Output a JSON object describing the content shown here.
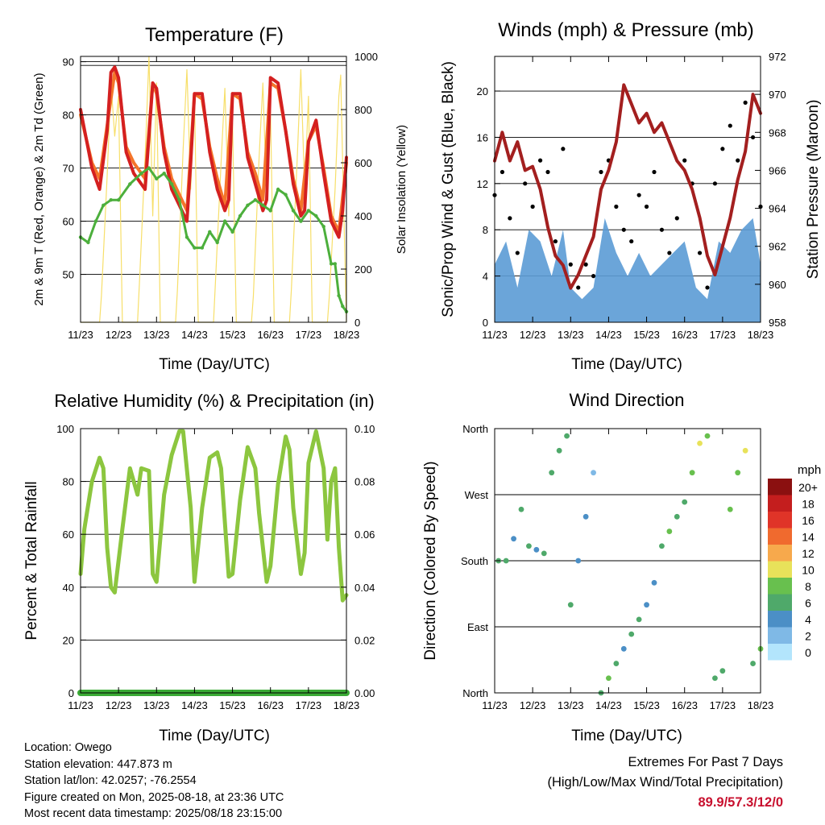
{
  "charts": [
    {
      "title": "Temperature (F)",
      "xlabel": "Time (Day/UTC)",
      "ylabel_left": "2m & 9m T (Red, Orange) & 2m Td (Green)",
      "ylabel_right": "Solar Insolation (Yellow)",
      "x_ticks": [
        "11/23",
        "12/23",
        "13/23",
        "14/23",
        "15/23",
        "16/23",
        "17/23",
        "18/23"
      ],
      "left_ticks": [
        "50",
        "60",
        "70",
        "80",
        "90"
      ],
      "right_ticks": [
        "0",
        "200",
        "400",
        "600",
        "800",
        "1000"
      ]
    },
    {
      "title": "Winds (mph) & Pressure (mb)",
      "xlabel": "Time (Day/UTC)",
      "ylabel_left": "Sonic/Prop Wind & Gust (Blue, Black)",
      "ylabel_right": "Station Pressure (Maroon)",
      "x_ticks": [
        "11/23",
        "12/23",
        "13/23",
        "14/23",
        "15/23",
        "16/23",
        "17/23",
        "18/23"
      ],
      "left_ticks": [
        "0",
        "4",
        "8",
        "12",
        "16",
        "20"
      ],
      "right_ticks": [
        "958",
        "960",
        "962",
        "964",
        "966",
        "968",
        "970",
        "972"
      ]
    },
    {
      "title": "Relative Humidity (%) & Precipitation (in)",
      "xlabel": "Time (Day/UTC)",
      "ylabel_left": "Percent & Total Rainfall",
      "ylabel_right": "",
      "x_ticks": [
        "11/23",
        "12/23",
        "13/23",
        "14/23",
        "15/23",
        "16/23",
        "17/23",
        "18/23"
      ],
      "left_ticks": [
        "0",
        "20",
        "40",
        "60",
        "80",
        "100"
      ],
      "right_ticks": [
        "0.00",
        "0.02",
        "0.04",
        "0.06",
        "0.08",
        "0.10"
      ]
    },
    {
      "title": "Wind Direction",
      "xlabel": "Time (Day/UTC)",
      "ylabel_left": "Direction (Colored By Speed)",
      "ylabel_right": "",
      "x_ticks": [
        "11/23",
        "12/23",
        "13/23",
        "14/23",
        "15/23",
        "16/23",
        "17/23",
        "18/23"
      ],
      "left_ticks": [
        "North",
        "East",
        "South",
        "West",
        "North"
      ],
      "right_ticks": [],
      "legend_title": "mph",
      "legend_labels": [
        "20+",
        "18",
        "16",
        "14",
        "12",
        "10",
        "8",
        "6",
        "4",
        "2",
        "0"
      ]
    }
  ],
  "chart_data": [
    {
      "type": "line",
      "title": "Temperature (F)",
      "x_range_days": [
        11,
        18
      ],
      "ylim": [
        41,
        91
      ],
      "y2lim": [
        0,
        1000
      ],
      "grid": true,
      "series": [
        {
          "name": "2m T",
          "color": "#d42020",
          "x": [
            11.0,
            11.3,
            11.5,
            11.7,
            11.8,
            11.9,
            12.0,
            12.2,
            12.4,
            12.7,
            12.8,
            12.9,
            13.0,
            13.2,
            13.4,
            13.6,
            13.8,
            13.9,
            14.0,
            14.2,
            14.4,
            14.6,
            14.8,
            14.9,
            15.0,
            15.2,
            15.4,
            15.6,
            15.8,
            15.9,
            16.0,
            16.2,
            16.4,
            16.6,
            16.8,
            16.9,
            17.0,
            17.2,
            17.4,
            17.6,
            17.8,
            17.9,
            18.0
          ],
          "y": [
            81,
            70,
            66,
            77,
            88,
            89,
            87,
            73,
            69,
            66,
            76,
            86,
            85,
            73,
            66,
            63,
            60,
            71,
            84,
            84,
            73,
            66,
            62,
            64,
            84,
            84,
            72,
            67,
            62,
            64,
            87,
            86,
            77,
            67,
            61,
            62,
            75,
            79,
            69,
            60,
            57,
            62,
            72
          ]
        },
        {
          "name": "9m T",
          "color": "#f4752a",
          "x": [
            11.0,
            11.3,
            11.5,
            11.7,
            11.9,
            12.0,
            12.2,
            12.4,
            12.7,
            12.9,
            13.0,
            13.2,
            13.4,
            13.6,
            13.8,
            14.0,
            14.2,
            14.4,
            14.6,
            14.8,
            15.0,
            15.2,
            15.4,
            15.6,
            15.8,
            16.0,
            16.2,
            16.4,
            16.6,
            16.8,
            17.0,
            17.2,
            17.4,
            17.6,
            17.8,
            18.0
          ],
          "y": [
            80,
            71,
            68,
            78,
            88,
            86,
            74,
            71,
            68,
            86,
            84,
            74,
            68,
            65,
            62,
            84,
            83,
            74,
            68,
            63,
            84,
            83,
            73,
            69,
            64,
            86,
            85,
            77,
            68,
            62,
            75,
            78,
            70,
            61,
            58,
            71
          ]
        },
        {
          "name": "2m Td",
          "color": "#4caf3c",
          "x": [
            11.0,
            11.2,
            11.4,
            11.6,
            11.8,
            12.0,
            12.3,
            12.6,
            12.8,
            13.0,
            13.2,
            13.4,
            13.6,
            13.8,
            14.0,
            14.2,
            14.4,
            14.6,
            14.8,
            15.0,
            15.2,
            15.4,
            15.6,
            15.8,
            16.0,
            16.2,
            16.4,
            16.6,
            16.8,
            17.0,
            17.2,
            17.4,
            17.6,
            17.7,
            17.8,
            17.9,
            18.0
          ],
          "y": [
            57,
            56,
            60,
            63,
            64,
            64,
            67,
            69,
            70,
            68,
            69,
            67,
            64,
            57,
            55,
            55,
            58,
            56,
            60,
            58,
            61,
            63,
            64,
            63,
            62,
            66,
            65,
            62,
            60,
            62,
            61,
            59,
            52,
            52,
            46,
            44,
            43
          ]
        },
        {
          "name": "Solar Insolation",
          "color": "#f7df6a",
          "axis": "right",
          "x": [
            11.0,
            11.5,
            11.55,
            11.7,
            11.8,
            11.9,
            12.0,
            12.1,
            12.5,
            12.55,
            12.7,
            12.8,
            12.9,
            13.0,
            13.1,
            13.5,
            13.55,
            13.7,
            13.8,
            13.9,
            14.0,
            14.1,
            14.5,
            14.55,
            14.7,
            14.8,
            14.9,
            15.0,
            15.1,
            15.5,
            15.55,
            15.7,
            15.8,
            15.9,
            16.0,
            16.1,
            16.5,
            16.55,
            16.7,
            16.8,
            16.9,
            17.0,
            17.1,
            17.5,
            17.55,
            17.7,
            17.8,
            17.85,
            17.9,
            18.0
          ],
          "y": [
            0,
            0,
            100,
            550,
            900,
            700,
            850,
            0,
            0,
            150,
            620,
            1000,
            400,
            900,
            0,
            0,
            120,
            650,
            950,
            500,
            850,
            0,
            0,
            150,
            600,
            880,
            400,
            750,
            0,
            0,
            100,
            620,
            900,
            450,
            800,
            0,
            0,
            120,
            600,
            950,
            500,
            850,
            0,
            0,
            100,
            500,
            850,
            930,
            600,
            0
          ]
        }
      ]
    },
    {
      "type": "line",
      "title": "Winds (mph) & Pressure (mb)",
      "x_range_days": [
        11,
        18
      ],
      "ylim": [
        0,
        23
      ],
      "y2lim": [
        958,
        972
      ],
      "grid": true,
      "series": [
        {
          "name": "Sonic/Prop Wind",
          "color": "#5b9bd5",
          "x": [
            11.0,
            11.3,
            11.6,
            11.9,
            12.2,
            12.5,
            12.8,
            13.0,
            13.3,
            13.6,
            13.9,
            14.2,
            14.5,
            14.8,
            15.1,
            15.4,
            15.7,
            16.0,
            16.3,
            16.6,
            16.9,
            17.2,
            17.5,
            17.8,
            18.0
          ],
          "y": [
            5,
            7,
            3,
            8,
            7,
            4,
            8,
            3,
            2,
            3,
            9,
            6,
            4,
            6,
            4,
            5,
            6,
            7,
            3,
            2,
            7,
            6,
            8,
            9,
            5
          ]
        },
        {
          "name": "Gust",
          "color": "#000000",
          "x": [
            11.0,
            11.2,
            11.4,
            11.6,
            11.8,
            12.0,
            12.2,
            12.4,
            12.6,
            12.8,
            13.0,
            13.2,
            13.4,
            13.6,
            13.8,
            14.0,
            14.2,
            14.4,
            14.6,
            14.8,
            15.0,
            15.2,
            15.4,
            15.6,
            15.8,
            16.0,
            16.2,
            16.4,
            16.6,
            16.8,
            17.0,
            17.2,
            17.4,
            17.6,
            17.8,
            18.0
          ],
          "y": [
            11,
            13,
            9,
            6,
            12,
            10,
            14,
            13,
            7,
            15,
            5,
            3,
            5,
            4,
            13,
            14,
            10,
            8,
            7,
            11,
            10,
            13,
            8,
            6,
            9,
            14,
            12,
            6,
            3,
            12,
            15,
            17,
            14,
            19,
            16,
            10
          ]
        },
        {
          "name": "Station Pressure",
          "color": "#a31f1f",
          "axis": "right",
          "x": [
            11.0,
            11.2,
            11.4,
            11.6,
            11.8,
            12.0,
            12.2,
            12.4,
            12.6,
            12.8,
            13.0,
            13.2,
            13.4,
            13.6,
            13.8,
            14.0,
            14.2,
            14.4,
            14.6,
            14.8,
            15.0,
            15.2,
            15.4,
            15.6,
            15.8,
            16.0,
            16.2,
            16.4,
            16.6,
            16.8,
            17.0,
            17.2,
            17.4,
            17.6,
            17.8,
            18.0
          ],
          "y": [
            966.5,
            968.0,
            966.5,
            967.5,
            966.0,
            966.2,
            965.0,
            963.0,
            961.5,
            961.0,
            959.8,
            960.5,
            961.5,
            962.5,
            965.0,
            966.0,
            967.5,
            970.5,
            969.5,
            968.5,
            969.0,
            968.0,
            968.5,
            967.5,
            966.5,
            966.0,
            965.0,
            963.5,
            961.5,
            960.5,
            962.0,
            963.5,
            965.5,
            967.0,
            970.0,
            969.0
          ]
        }
      ]
    },
    {
      "type": "line",
      "title": "Relative Humidity (%) & Precipitation (in)",
      "x_range_days": [
        11,
        18
      ],
      "ylim": [
        0,
        100
      ],
      "y2lim": [
        0,
        0.1
      ],
      "grid": true,
      "series": [
        {
          "name": "Relative Humidity",
          "color": "#8cc63f",
          "x": [
            11.0,
            11.1,
            11.3,
            11.5,
            11.6,
            11.7,
            11.8,
            11.9,
            12.1,
            12.3,
            12.5,
            12.6,
            12.8,
            12.9,
            13.0,
            13.2,
            13.4,
            13.6,
            13.7,
            13.9,
            14.0,
            14.2,
            14.4,
            14.6,
            14.7,
            14.9,
            15.0,
            15.2,
            15.4,
            15.6,
            15.7,
            15.9,
            16.0,
            16.2,
            16.4,
            16.5,
            16.6,
            16.8,
            16.9,
            17.0,
            17.2,
            17.4,
            17.5,
            17.6,
            17.7,
            17.8,
            17.9,
            18.0
          ],
          "y": [
            45,
            62,
            80,
            89,
            85,
            55,
            40,
            38,
            62,
            85,
            75,
            85,
            84,
            45,
            42,
            75,
            90,
            99,
            99,
            70,
            42,
            70,
            89,
            91,
            85,
            44,
            45,
            73,
            93,
            85,
            68,
            42,
            48,
            79,
            97,
            92,
            70,
            45,
            53,
            87,
            99,
            85,
            58,
            80,
            85,
            55,
            35,
            37
          ]
        },
        {
          "name": "Total Rainfall",
          "color": "#3aaa35",
          "axis": "right",
          "x": [
            11.0,
            18.0
          ],
          "y": [
            0.0,
            0.0
          ]
        }
      ]
    },
    {
      "type": "scatter",
      "title": "Wind Direction",
      "x_range_days": [
        11,
        18
      ],
      "y_categories": [
        "North",
        "East",
        "South",
        "West",
        "North"
      ],
      "legend_placement": "right",
      "colors": [
        "#b3e5fc",
        "#7fb9e6",
        "#4b8fc6",
        "#4fa96a",
        "#68c04e",
        "#e8e25a",
        "#f7a94c",
        "#f06a2e",
        "#e03428",
        "#c41e1e",
        "#8b1010"
      ],
      "points_deg_speed": [
        {
          "x": [
            11.1,
            11.3,
            11.5,
            11.7,
            11.9,
            12.1,
            12.3,
            12.5,
            12.7,
            12.9
          ],
          "y": [
            180,
            180,
            210,
            250,
            200,
            195,
            190,
            300,
            330,
            350
          ],
          "speed": [
            6,
            6,
            4,
            6,
            5,
            4,
            6,
            5,
            6,
            6
          ]
        },
        {
          "x": [
            13.0,
            13.2,
            13.4,
            13.6,
            13.8,
            14.0,
            14.2,
            14.4,
            14.6,
            14.8,
            15.0
          ],
          "y": [
            120,
            180,
            240,
            300,
            0,
            20,
            40,
            60,
            80,
            100,
            120
          ],
          "speed": [
            6,
            4,
            3,
            2,
            6,
            7,
            6,
            4,
            5,
            6,
            4
          ]
        },
        {
          "x": [
            15.2,
            15.4,
            15.6,
            15.8,
            16.0,
            16.2,
            16.4,
            16.6,
            16.8,
            17.0
          ],
          "y": [
            150,
            200,
            220,
            240,
            260,
            300,
            340,
            350,
            20,
            30
          ],
          "speed": [
            4,
            6,
            7,
            5,
            6,
            8,
            9,
            8,
            6,
            6
          ]
        },
        {
          "x": [
            17.2,
            17.4,
            17.6,
            17.8,
            18.0
          ],
          "y": [
            250,
            300,
            330,
            40,
            60
          ],
          "speed": [
            7,
            8,
            10,
            6,
            7
          ]
        }
      ]
    }
  ],
  "info": {
    "left": [
      "Location: Owego",
      "Station elevation: 447.873 m",
      "Station lat/lon: 42.0257; -76.2554",
      "Figure created on Mon, 2025-08-18, at 23:36 UTC",
      "Most recent data timestamp: 2025/08/18 23:15:00"
    ],
    "right_title_1": "Extremes For Past 7 Days",
    "right_title_2": "(High/Low/Max Wind/Total Precipitation)",
    "right_values": "89.9/57.3/12/0"
  }
}
